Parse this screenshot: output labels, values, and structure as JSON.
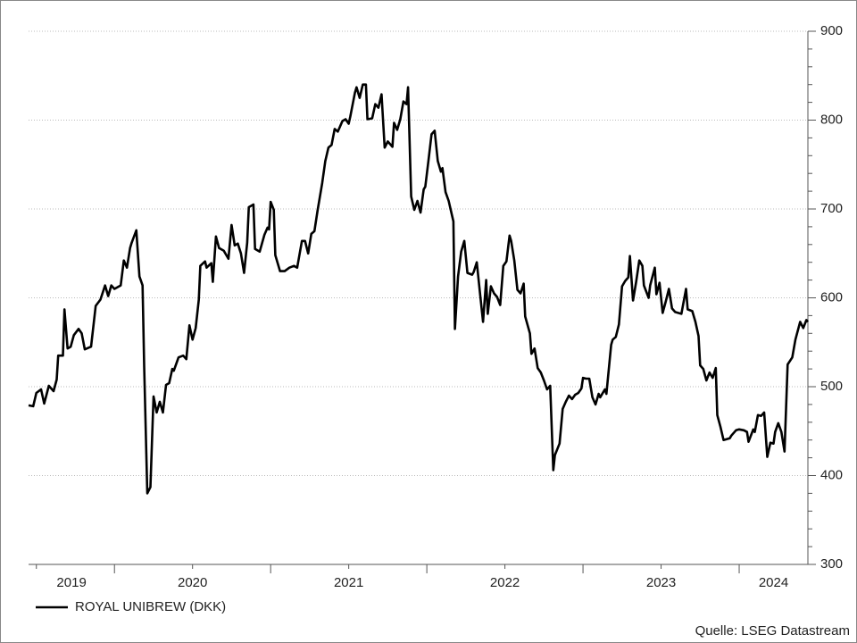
{
  "chart_data": {
    "type": "line",
    "series": [
      {
        "name": "ROYAL UNIBREW (DKK)",
        "color": "#000000",
        "x": [
          2019.45,
          2019.48,
          2019.5,
          2019.53,
          2019.55,
          2019.58,
          2019.61,
          2019.63,
          2019.64,
          2019.67,
          2019.68,
          2019.7,
          2019.72,
          2019.74,
          2019.77,
          2019.79,
          2019.81,
          2019.85,
          2019.88,
          2019.91,
          2019.94,
          2019.96,
          2019.98,
          2020.0,
          2020.04,
          2020.06,
          2020.08,
          2020.1,
          2020.11,
          2020.14,
          2020.16,
          2020.18,
          2020.19,
          2020.21,
          2020.23,
          2020.25,
          2020.27,
          2020.29,
          2020.31,
          2020.33,
          2020.35,
          2020.37,
          2020.38,
          2020.41,
          2020.44,
          2020.46,
          2020.48,
          2020.5,
          2020.52,
          2020.54,
          2020.55,
          2020.58,
          2020.59,
          2020.62,
          2020.63,
          2020.65,
          2020.67,
          2020.7,
          2020.73,
          2020.75,
          2020.77,
          2020.79,
          2020.81,
          2020.83,
          2020.85,
          2020.86,
          2020.89,
          2020.9,
          2020.93,
          2020.96,
          2020.98,
          2020.99,
          2021.0,
          2021.02,
          2021.03,
          2021.06,
          2021.09,
          2021.12,
          2021.15,
          2021.17,
          2021.2,
          2021.22,
          2021.24,
          2021.26,
          2021.28,
          2021.3,
          2021.33,
          2021.35,
          2021.37,
          2021.39,
          2021.41,
          2021.43,
          2021.46,
          2021.48,
          2021.5,
          2021.51,
          2021.54,
          2021.55,
          2021.57,
          2021.59,
          2021.61,
          2021.62,
          2021.65,
          2021.67,
          2021.69,
          2021.71,
          2021.73,
          2021.75,
          2021.78,
          2021.79,
          2021.81,
          2021.83,
          2021.85,
          2021.87,
          2021.88,
          2021.9,
          2021.92,
          2021.94,
          2021.96,
          2021.98,
          2021.99,
          2022.01,
          2022.03,
          2022.05,
          2022.07,
          2022.09,
          2022.1,
          2022.12,
          2022.14,
          2022.17,
          2022.18,
          2022.2,
          2022.22,
          2022.24,
          2022.26,
          2022.29,
          2022.3,
          2022.32,
          2022.34,
          2022.36,
          2022.38,
          2022.39,
          2022.41,
          2022.43,
          2022.45,
          2022.47,
          2022.49,
          2022.51,
          2022.53,
          2022.54,
          2022.56,
          2022.58,
          2022.6,
          2022.62,
          2022.63,
          2022.66,
          2022.67,
          2022.69,
          2022.71,
          2022.73,
          2022.75,
          2022.77,
          2022.79,
          2022.81,
          2022.82,
          2022.85,
          2022.87,
          2022.89,
          2022.91,
          2022.93,
          2022.95,
          2022.97,
          2022.99,
          2023.0,
          2023.02,
          2023.04,
          2023.06,
          2023.08,
          2023.1,
          2023.11,
          2023.14,
          2023.15,
          2023.18,
          2023.19,
          2023.21,
          2023.23,
          2023.25,
          2023.27,
          2023.29,
          2023.3,
          2023.32,
          2023.34,
          2023.36,
          2023.38,
          2023.39,
          2023.42,
          2023.43,
          2023.46,
          2023.47,
          2023.49,
          2023.51,
          2023.53,
          2023.55,
          2023.57,
          2023.59,
          2023.63,
          2023.66,
          2023.67,
          2023.7,
          2023.72,
          2023.74,
          2023.75,
          2023.77,
          2023.79,
          2023.81,
          2023.83,
          2023.85,
          2023.86,
          2023.88,
          2023.9,
          2023.94,
          2023.95,
          2023.98,
          2024.0,
          2024.03,
          2024.05,
          2024.06,
          2024.09,
          2024.1,
          2024.12,
          2024.14,
          2024.16,
          2024.18,
          2024.2,
          2024.22,
          2024.23,
          2024.25,
          2024.27,
          2024.29,
          2024.31,
          2024.34,
          2024.36,
          2024.39,
          2024.41,
          2024.43,
          2024.44
        ],
        "values": [
          479,
          478,
          493,
          497,
          481,
          501,
          495,
          508,
          535,
          535,
          587,
          543,
          545,
          558,
          565,
          560,
          542,
          545,
          591,
          598,
          614,
          602,
          614,
          610,
          614,
          642,
          634,
          656,
          662,
          676,
          624,
          614,
          523,
          380,
          387,
          489,
          471,
          483,
          471,
          502,
          504,
          520,
          518,
          533,
          535,
          531,
          569,
          553,
          566,
          598,
          636,
          641,
          634,
          639,
          618,
          669,
          656,
          653,
          644,
          682,
          659,
          661,
          650,
          628,
          662,
          702,
          705,
          655,
          652,
          671,
          679,
          677,
          708,
          699,
          648,
          630,
          630,
          634,
          636,
          634,
          664,
          664,
          650,
          672,
          675,
          698,
          729,
          754,
          769,
          772,
          790,
          787,
          799,
          801,
          796,
          804,
          831,
          837,
          825,
          840,
          840,
          801,
          802,
          818,
          814,
          829,
          769,
          776,
          770,
          797,
          789,
          801,
          821,
          818,
          837,
          714,
          699,
          709,
          696,
          722,
          725,
          754,
          784,
          788,
          754,
          742,
          746,
          719,
          709,
          686,
          565,
          624,
          652,
          664,
          628,
          626,
          629,
          640,
          606,
          573,
          620,
          582,
          613,
          605,
          601,
          592,
          636,
          641,
          670,
          664,
          642,
          609,
          605,
          616,
          579,
          560,
          537,
          543,
          521,
          516,
          507,
          497,
          501,
          406,
          423,
          436,
          475,
          483,
          490,
          486,
          491,
          493,
          498,
          510,
          509,
          509,
          488,
          480,
          492,
          488,
          497,
          492,
          547,
          553,
          556,
          570,
          613,
          619,
          623,
          647,
          597,
          618,
          642,
          636,
          614,
          600,
          614,
          634,
          604,
          617,
          583,
          596,
          610,
          588,
          584,
          582,
          610,
          587,
          585,
          573,
          557,
          524,
          520,
          507,
          516,
          510,
          521,
          468,
          455,
          440,
          442,
          445,
          451,
          452,
          451,
          449,
          438,
          452,
          449,
          468,
          467,
          471,
          421,
          437,
          436,
          449,
          459,
          449,
          427,
          525,
          533,
          553,
          573,
          566,
          575,
          573
        ]
      }
    ],
    "xlim": [
      2019.45,
      2024.44
    ],
    "xticks": [
      2020,
      2021,
      2022,
      2023,
      2024
    ],
    "xlabels": [
      "2019",
      "2020",
      "2021",
      "2022",
      "2023",
      "2024"
    ],
    "ylim": [
      300,
      900
    ],
    "yticks": [
      300,
      400,
      500,
      600,
      700,
      800,
      900
    ],
    "grid": true,
    "legend": "bottom-left",
    "source": "Quelle: LSEG Datastream"
  }
}
